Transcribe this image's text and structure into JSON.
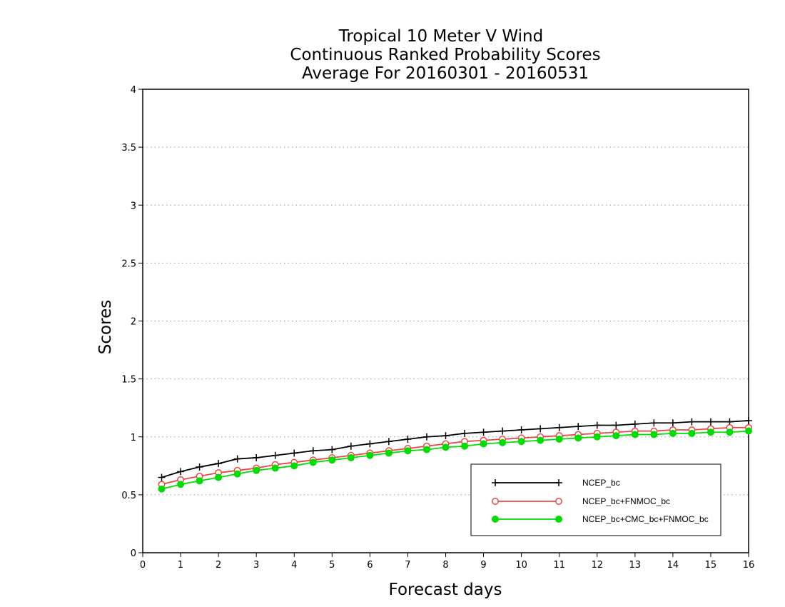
{
  "chart_data": {
    "type": "line",
    "title": [
      "Tropical 10 Meter V Wind",
      "Continuous Ranked Probability Scores",
      "Average For 20160301 - 20160531"
    ],
    "xlabel": "Forecast days",
    "ylabel": "Scores",
    "xlim": [
      0,
      16
    ],
    "ylim": [
      0,
      4
    ],
    "xticks": [
      "0",
      "1",
      "2",
      "3",
      "4",
      "5",
      "6",
      "7",
      "8",
      "9",
      "10",
      "11",
      "12",
      "13",
      "14",
      "15",
      "16"
    ],
    "yticks": [
      "0",
      "0.5",
      "1",
      "1.5",
      "2",
      "2.5",
      "3",
      "3.5",
      "4"
    ],
    "grid": "horizontal dotted",
    "legend_position": "bottom-right",
    "x": [
      0.5,
      1,
      1.5,
      2,
      2.5,
      3,
      3.5,
      4,
      4.5,
      5,
      5.5,
      6,
      6.5,
      7,
      7.5,
      8,
      8.5,
      9,
      9.5,
      10,
      10.5,
      11,
      11.5,
      12,
      12.5,
      13,
      13.5,
      14,
      14.5,
      15,
      15.5,
      16
    ],
    "series": [
      {
        "name": "NCEP_bc",
        "color": "#000000",
        "marker": "plus",
        "values": [
          0.65,
          0.7,
          0.74,
          0.77,
          0.81,
          0.82,
          0.84,
          0.86,
          0.88,
          0.89,
          0.92,
          0.94,
          0.96,
          0.98,
          1.0,
          1.01,
          1.03,
          1.04,
          1.05,
          1.06,
          1.07,
          1.08,
          1.09,
          1.1,
          1.1,
          1.11,
          1.12,
          1.12,
          1.13,
          1.13,
          1.13,
          1.14
        ]
      },
      {
        "name": "NCEP_bc+FNMOC_bc",
        "color": "#ee4444",
        "marker": "open-circle",
        "values": [
          0.59,
          0.63,
          0.66,
          0.69,
          0.71,
          0.73,
          0.76,
          0.78,
          0.8,
          0.82,
          0.84,
          0.86,
          0.88,
          0.9,
          0.92,
          0.94,
          0.96,
          0.97,
          0.98,
          0.99,
          1.0,
          1.01,
          1.02,
          1.03,
          1.04,
          1.05,
          1.05,
          1.06,
          1.06,
          1.07,
          1.08,
          1.08
        ]
      },
      {
        "name": "NCEP_bc+CMC_bc+FNMOC_bc",
        "color": "#00dd00",
        "marker": "filled-circle",
        "values": [
          0.55,
          0.59,
          0.62,
          0.65,
          0.68,
          0.71,
          0.73,
          0.75,
          0.78,
          0.8,
          0.82,
          0.84,
          0.86,
          0.88,
          0.89,
          0.91,
          0.92,
          0.94,
          0.95,
          0.96,
          0.97,
          0.98,
          0.99,
          1.0,
          1.01,
          1.02,
          1.02,
          1.03,
          1.03,
          1.04,
          1.04,
          1.05
        ]
      }
    ]
  }
}
